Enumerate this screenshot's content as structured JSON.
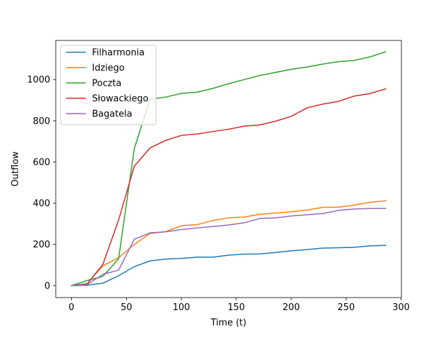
{
  "chart_data": {
    "type": "line",
    "xlabel": "Time (t)",
    "ylabel": "Outflow",
    "xlim": [
      -14.3,
      300.3
    ],
    "ylim": [
      -58,
      1190
    ],
    "xticks": [
      0,
      50,
      100,
      150,
      200,
      250,
      300
    ],
    "yticks": [
      0,
      200,
      400,
      600,
      800,
      1000
    ],
    "grid": false,
    "legend_position": "upper-left",
    "x": [
      0,
      14.3,
      28.6,
      42.9,
      57.2,
      71.5,
      85.8,
      100.1,
      114.4,
      128.7,
      143,
      157.3,
      171.6,
      185.9,
      200.2,
      214.5,
      228.8,
      243.1,
      257.4,
      271.7,
      286
    ],
    "series": [
      {
        "name": "Filharmonia",
        "color": "#1f77b4",
        "values": [
          0,
          2,
          12,
          48,
          92,
          120,
          129,
          132,
          138,
          138,
          148,
          153,
          154,
          161,
          169,
          175,
          182,
          184,
          186,
          193,
          195
        ]
      },
      {
        "name": "Idziego",
        "color": "#ff7f0e",
        "values": [
          0,
          10,
          97,
          135,
          200,
          253,
          262,
          291,
          296,
          316,
          329,
          333,
          346,
          352,
          359,
          367,
          380,
          381,
          391,
          404,
          412
        ]
      },
      {
        "name": "Poczta",
        "color": "#2ca02c",
        "values": [
          0,
          25,
          45,
          130,
          665,
          905,
          915,
          933,
          939,
          957,
          980,
          1000,
          1020,
          1035,
          1050,
          1061,
          1075,
          1087,
          1093,
          1110,
          1135
        ]
      },
      {
        "name": "Słowackiego",
        "color": "#d62728",
        "values": [
          0,
          8,
          103,
          318,
          580,
          668,
          705,
          729,
          736,
          748,
          759,
          774,
          780,
          798,
          822,
          863,
          881,
          894,
          920,
          932,
          955
        ]
      },
      {
        "name": "Bagatela",
        "color": "#9467bd",
        "values": [
          0,
          5,
          55,
          75,
          225,
          256,
          261,
          272,
          280,
          287,
          294,
          305,
          326,
          329,
          338,
          344,
          350,
          365,
          372,
          374,
          375
        ]
      }
    ]
  }
}
